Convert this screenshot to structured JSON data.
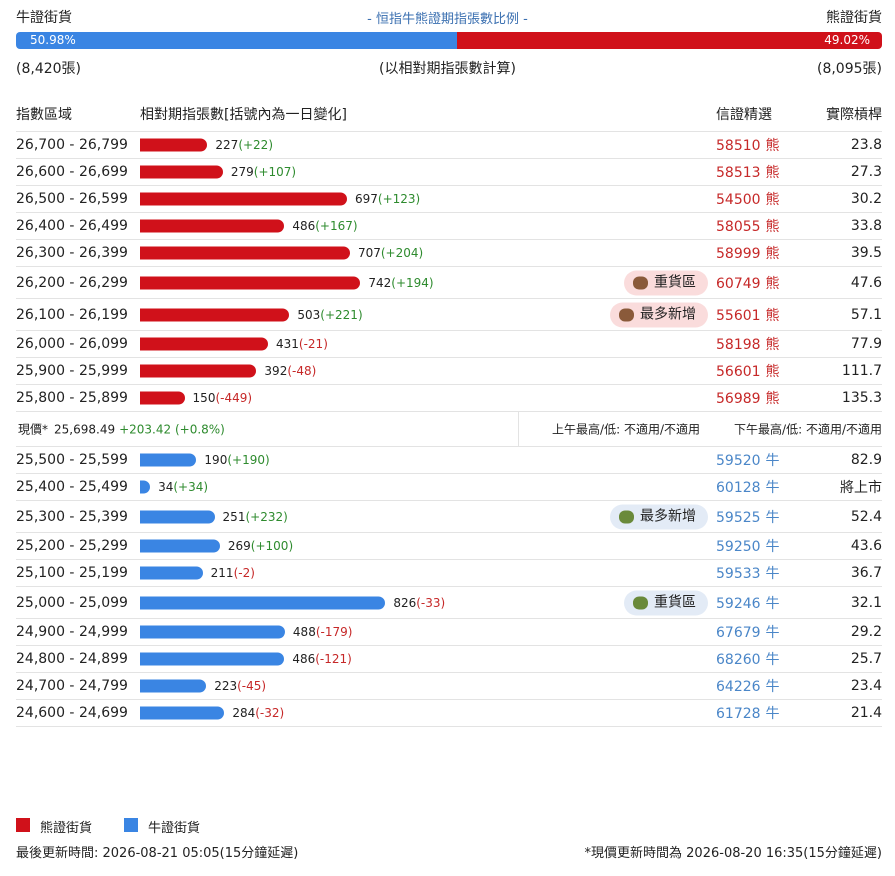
{
  "header": {
    "left": "牛證街貨",
    "title": "- 恒指牛熊證期指張數比例 -",
    "right": "熊證街貨"
  },
  "ratio": {
    "bull": {
      "value": 50.98,
      "label": "50.98%"
    },
    "bear": {
      "value": 49.02,
      "label": "49.02%"
    }
  },
  "counts": {
    "left": "(8,420張)",
    "note": "(以相對期指張數計算)",
    "right": "(8,095張)"
  },
  "columns": [
    "指數區域",
    "相對期指張數[括號內為一日變化]",
    "信證精選",
    "實際槓桿"
  ],
  "bear": {
    "color": "#d0111a",
    "pick_color": "#c62828",
    "rows": [
      {
        "range": "26,700 - 26,799",
        "count": 227,
        "change": "(+22)",
        "pick": "58510",
        "side": "熊",
        "leverage": "23.8"
      },
      {
        "range": "26,600 - 26,699",
        "count": 279,
        "change": "(+107)",
        "pick": "58513",
        "side": "熊",
        "leverage": "27.3"
      },
      {
        "range": "26,500 - 26,599",
        "count": 697,
        "change": "(+123)",
        "pick": "54500",
        "side": "熊",
        "leverage": "30.2"
      },
      {
        "range": "26,400 - 26,499",
        "count": 486,
        "change": "(+167)",
        "pick": "58055",
        "side": "熊",
        "leverage": "33.8"
      },
      {
        "range": "26,300 - 26,399",
        "count": 707,
        "change": "(+204)",
        "pick": "58999",
        "side": "熊",
        "leverage": "39.5"
      },
      {
        "range": "26,200 - 26,299",
        "count": 742,
        "change": "(+194)",
        "tag": "重貨區",
        "pick": "60749",
        "side": "熊",
        "leverage": "47.6"
      },
      {
        "range": "26,100 - 26,199",
        "count": 503,
        "change": "(+221)",
        "tag": "最多新增",
        "pick": "55601",
        "side": "熊",
        "leverage": "57.1"
      },
      {
        "range": "26,000 - 26,099",
        "count": 431,
        "change": "(-21)",
        "pick": "58198",
        "side": "熊",
        "leverage": "77.9"
      },
      {
        "range": "25,900 - 25,999",
        "count": 392,
        "change": "(-48)",
        "pick": "56601",
        "side": "熊",
        "leverage": "111.7"
      },
      {
        "range": "25,800 - 25,899",
        "count": 150,
        "change": "(-449)",
        "pick": "56989",
        "side": "熊",
        "leverage": "135.3"
      }
    ]
  },
  "current": {
    "label": "現價*",
    "price": "25,698.49",
    "change": "+203.42 (+0.8%)",
    "am": "上午最高/低: 不適用/不適用",
    "pm": "下午最高/低: 不適用/不適用"
  },
  "bull": {
    "color": "#3a85e3",
    "pick_color": "#4a86c8",
    "rows": [
      {
        "range": "25,500 - 25,599",
        "count": 190,
        "change": "(+190)",
        "pick": "59520",
        "side": "牛",
        "leverage": "82.9"
      },
      {
        "range": "25,400 - 25,499",
        "count": 34,
        "change": "(+34)",
        "pick": "60128",
        "side": "牛",
        "leverage": "將上市"
      },
      {
        "range": "25,300 - 25,399",
        "count": 251,
        "change": "(+232)",
        "tag": "最多新增",
        "pick": "59525",
        "side": "牛",
        "leverage": "52.4"
      },
      {
        "range": "25,200 - 25,299",
        "count": 269,
        "change": "(+100)",
        "pick": "59250",
        "side": "牛",
        "leverage": "43.6"
      },
      {
        "range": "25,100 - 25,199",
        "count": 211,
        "change": "(-2)",
        "pick": "59533",
        "side": "牛",
        "leverage": "36.7"
      },
      {
        "range": "25,000 - 25,099",
        "count": 826,
        "change": "(-33)",
        "tag": "重貨區",
        "pick": "59246",
        "side": "牛",
        "leverage": "32.1"
      },
      {
        "range": "24,900 - 24,999",
        "count": 488,
        "change": "(-179)",
        "pick": "67679",
        "side": "牛",
        "leverage": "29.2"
      },
      {
        "range": "24,800 - 24,899",
        "count": 486,
        "change": "(-121)",
        "pick": "68260",
        "side": "牛",
        "leverage": "25.7"
      },
      {
        "range": "24,700 - 24,799",
        "count": 223,
        "change": "(-45)",
        "pick": "64226",
        "side": "牛",
        "leverage": "23.4"
      },
      {
        "range": "24,600 - 24,699",
        "count": 284,
        "change": "(-32)",
        "pick": "61728",
        "side": "牛",
        "leverage": "21.4"
      }
    ]
  },
  "legend": [
    "熊證街貨",
    "牛證街貨"
  ],
  "footer": {
    "left": "最後更新時間: 2026-08-21 05:05(15分鐘延遲)",
    "right": "*現價更新時間為 2026-08-20 16:35(15分鐘延遲)"
  }
}
